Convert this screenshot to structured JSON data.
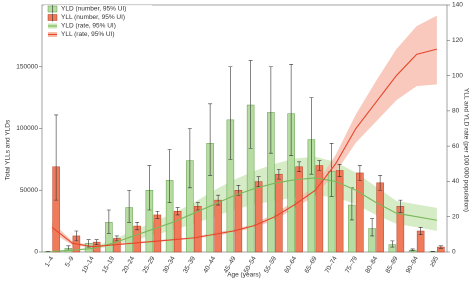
{
  "chart_data": {
    "type": "bar-line",
    "categories": [
      "1–4",
      "5–9",
      "10–14",
      "15–19",
      "20–24",
      "25–29",
      "30–34",
      "35–39",
      "40–44",
      "45–49",
      "50–54",
      "55–59",
      "60–64",
      "65–69",
      "70–74",
      "75–79",
      "80–84",
      "85–89",
      "90–94",
      "≥95"
    ],
    "x_label": "Age (years)",
    "y_label": "Total YLLs and YLDs",
    "y2_label": "YLL and YLD rate (per 100 000 population)",
    "ylim": [
      0,
      200000
    ],
    "yticks": [
      0,
      50000,
      100000,
      150000
    ],
    "y2lim": [
      0,
      140
    ],
    "y2ticks": [
      0,
      20,
      40,
      60,
      80,
      100,
      120,
      140
    ],
    "series": [
      {
        "name": "YLD (number, 95% UI)",
        "kind": "bar",
        "color": "#b6dca2",
        "edge": "#5e9e45",
        "values": [
          300,
          3000,
          7000,
          24000,
          36000,
          50000,
          58000,
          74000,
          88000,
          107000,
          119000,
          113000,
          112000,
          91000,
          65000,
          38000,
          19000,
          6000,
          1500,
          300
        ],
        "lower": [
          200,
          1500,
          4000,
          15000,
          24000,
          34000,
          40000,
          52000,
          62000,
          75000,
          84000,
          80000,
          78000,
          63000,
          45000,
          26000,
          13000,
          4000,
          1000,
          200
        ],
        "upper": [
          400,
          5000,
          10000,
          34000,
          50000,
          70000,
          83000,
          100000,
          120000,
          150000,
          155000,
          150000,
          152000,
          125000,
          88000,
          52000,
          27000,
          9000,
          2500,
          500
        ]
      },
      {
        "name": "YLL (number, 95% UI)",
        "kind": "bar",
        "color": "#ef7b5b",
        "edge": "#b83b22",
        "values": [
          69000,
          13000,
          8000,
          11000,
          21000,
          30000,
          33000,
          37000,
          42000,
          50000,
          57000,
          63000,
          69000,
          70000,
          66000,
          64000,
          56000,
          37000,
          17000,
          4000
        ],
        "lower": [
          42000,
          9000,
          6000,
          9000,
          18000,
          27000,
          30000,
          34000,
          38000,
          46000,
          53000,
          59000,
          65000,
          66000,
          61000,
          58000,
          50000,
          32000,
          14000,
          3000
        ],
        "upper": [
          111000,
          17000,
          10000,
          13000,
          24000,
          33000,
          36000,
          40000,
          46000,
          54000,
          61000,
          67000,
          73000,
          74000,
          71000,
          70000,
          62000,
          42000,
          20000,
          5000
        ]
      },
      {
        "name": "YLD (rate, 95% UI)",
        "kind": "line",
        "axis": "y2",
        "color": "#7ab85a",
        "band": "#cbe7b8",
        "values": [
          0.3,
          1,
          2,
          5,
          9,
          13,
          17,
          22,
          27,
          32,
          36,
          39,
          41,
          42,
          40,
          35,
          28,
          22,
          20,
          18
        ],
        "lower": [
          0.2,
          0.7,
          1.4,
          3.5,
          6.5,
          9.5,
          12.5,
          16,
          20,
          24,
          27,
          29,
          31,
          32,
          31,
          27,
          21,
          16,
          14,
          12
        ],
        "upper": [
          0.4,
          1.3,
          2.7,
          7,
          12,
          17,
          22,
          28,
          35,
          41,
          46,
          50,
          53,
          54,
          51,
          45,
          37,
          29,
          27,
          25
        ]
      },
      {
        "name": "YLL (rate, 95% UI)",
        "kind": "line",
        "axis": "y2",
        "color": "#e8452c",
        "band": "#f6bcab",
        "values": [
          14,
          5,
          3,
          4,
          5,
          6,
          7,
          8,
          10,
          12,
          15,
          20,
          27,
          35,
          50,
          70,
          85,
          100,
          112,
          115
        ],
        "lower": [
          11,
          4,
          2.5,
          3.5,
          4.5,
          5.5,
          6.5,
          7.5,
          9,
          11,
          14,
          18,
          25,
          32,
          45,
          62,
          74,
          86,
          94,
          95
        ],
        "upper": [
          17,
          6,
          3.5,
          4.5,
          5.5,
          6.5,
          7.5,
          8.5,
          11,
          13,
          16,
          22,
          29,
          38,
          55,
          78,
          97,
          115,
          128,
          134
        ]
      }
    ]
  }
}
